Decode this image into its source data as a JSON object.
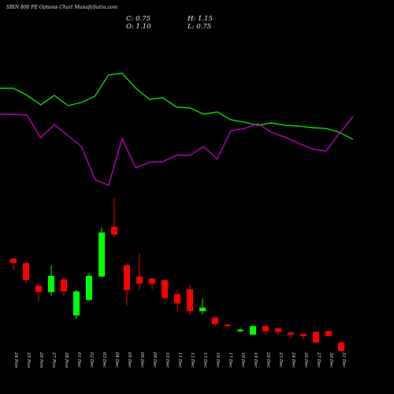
{
  "chart_data": {
    "type": "candlestick",
    "title": "SBIN 800 PE Options Chart MunafaSutra.com",
    "ohlc_header": {
      "close_label": "C:",
      "close": "0.75",
      "high_label": "H:",
      "high": "1.15",
      "open_label": "O:",
      "open": "1.10",
      "low_label": "L:",
      "low": "0.75"
    },
    "categories": [
      "24 Nov",
      "25 Nov",
      "26 Nov",
      "27 Nov",
      "28 Nov",
      "01 Dec",
      "02 Dec",
      "03 Dec",
      "04 Dec",
      "05 Dec",
      "06 Dec",
      "09 Dec",
      "10 Dec",
      "11 Dec",
      "12 Dec",
      "13 Dec",
      "16 Dec",
      "17 Dec",
      "18 Dec",
      "19 Dec",
      "20 Dec",
      "23 Dec",
      "24 Dec",
      "26 Dec",
      "27 Dec",
      "30 Dec",
      "31 Dec"
    ],
    "colors": {
      "up": "#00ff00",
      "down": "#ff0000",
      "line_a": "#00dd00",
      "line_b": "#bb00bb"
    },
    "candles": [
      {
        "o": 6.2,
        "h": 6.25,
        "l": 5.4,
        "c": 5.9
      },
      {
        "o": 5.9,
        "h": 6.0,
        "l": 4.5,
        "c": 4.7
      },
      {
        "o": 4.3,
        "h": 4.4,
        "l": 3.2,
        "c": 3.85
      },
      {
        "o": 3.85,
        "h": 5.7,
        "l": 3.6,
        "c": 5.0
      },
      {
        "o": 4.75,
        "h": 4.9,
        "l": 3.55,
        "c": 3.9
      },
      {
        "o": 2.2,
        "h": 4.0,
        "l": 1.95,
        "c": 3.9
      },
      {
        "o": 3.3,
        "h": 5.2,
        "l": 3.2,
        "c": 5.0
      },
      {
        "o": 4.95,
        "h": 8.4,
        "l": 4.9,
        "c": 8.05
      },
      {
        "o": 8.45,
        "h": 10.45,
        "l": 7.75,
        "c": 7.9
      },
      {
        "o": 5.75,
        "h": 5.8,
        "l": 2.9,
        "c": 4.0
      },
      {
        "o": 4.95,
        "h": 6.6,
        "l": 4.0,
        "c": 4.45
      },
      {
        "o": 4.8,
        "h": 4.85,
        "l": 4.05,
        "c": 4.45
      },
      {
        "o": 4.7,
        "h": 4.75,
        "l": 3.3,
        "c": 3.45
      },
      {
        "o": 3.7,
        "h": 4.05,
        "l": 2.5,
        "c": 3.05
      },
      {
        "o": 4.05,
        "h": 4.35,
        "l": 2.25,
        "c": 2.5
      },
      {
        "o": 2.5,
        "h": 3.4,
        "l": 2.25,
        "c": 2.75
      },
      {
        "o": 2.05,
        "h": 2.15,
        "l": 1.45,
        "c": 1.6
      },
      {
        "o": 1.55,
        "h": 1.65,
        "l": 1.35,
        "c": 1.45
      },
      {
        "o": 1.1,
        "h": 1.3,
        "l": 1.05,
        "c": 1.2
      },
      {
        "o": 0.85,
        "h": 1.55,
        "l": 0.8,
        "c": 1.45
      },
      {
        "o": 1.45,
        "h": 1.5,
        "l": 0.85,
        "c": 1.1
      },
      {
        "o": 1.3,
        "h": 1.35,
        "l": 0.8,
        "c": 1.05
      },
      {
        "o": 1.0,
        "h": 1.1,
        "l": 0.65,
        "c": 0.85
      },
      {
        "o": 0.9,
        "h": 0.95,
        "l": 0.55,
        "c": 0.75
      },
      {
        "o": 1.05,
        "h": 1.1,
        "l": 0.25,
        "c": 0.3
      },
      {
        "o": 1.1,
        "h": 1.15,
        "l": 0.75,
        "c": 0.75
      },
      {
        "o": 0.3,
        "h": 0.35,
        "l": -0.35,
        "c": -0.3
      }
    ],
    "line_green": [
      112,
      112,
      121,
      133,
      121,
      134,
      130,
      122,
      95,
      93,
      112,
      126,
      124,
      136,
      137,
      145,
      142,
      152,
      155,
      159,
      156,
      159,
      160,
      162,
      163,
      168,
      177
    ],
    "line_purple": [
      145,
      145,
      146,
      175,
      158,
      172,
      186,
      228,
      235,
      176,
      213,
      206,
      205,
      197,
      197,
      186,
      202,
      166,
      163,
      157,
      168,
      174,
      182,
      189,
      192,
      169,
      148
    ]
  }
}
